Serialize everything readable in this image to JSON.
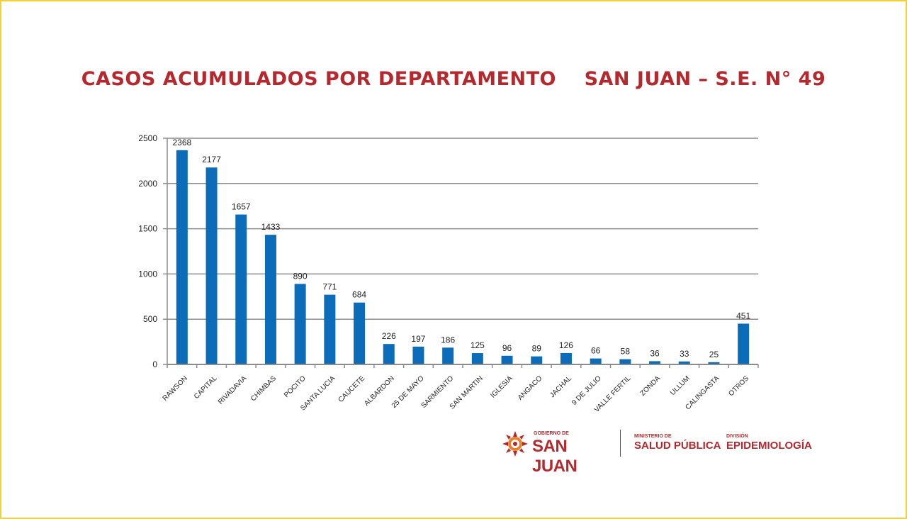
{
  "header": {
    "title": "CASOS ACUMULADOS POR DEPARTAMENTO    SAN JUAN – S.E. N° 49"
  },
  "chart_data": {
    "type": "bar",
    "title": "CASOS ACUMULADOS POR DEPARTAMENTO    SAN JUAN – S.E. N° 49",
    "xlabel": "",
    "ylabel": "",
    "ylim": [
      0,
      2500
    ],
    "yticks": [
      0,
      500,
      1000,
      1500,
      2000,
      2500
    ],
    "grid": true,
    "categories": [
      "RAWSON",
      "CAPITAL",
      "RIVADAVIA",
      "CHIMBAS",
      "POCITO",
      "SANTA LUCIA",
      "CAUCETE",
      "ALBARDON",
      "25 DE MAYO",
      "SARMIENTO",
      "SAN MARTIN",
      "IGLESIA",
      "ANGACO",
      "JACHAL",
      "9 DE JULIO",
      "VALLE FERTIL",
      "ZONDA",
      "ULLUM",
      "CALINGASTA",
      "OTROS"
    ],
    "values": [
      2368,
      2177,
      1657,
      1433,
      890,
      771,
      684,
      226,
      197,
      186,
      125,
      96,
      89,
      126,
      66,
      58,
      36,
      33,
      25,
      451
    ],
    "colors": {
      "bar": "#0b6dba",
      "grid": "#8c8c8c",
      "text": "#222222"
    }
  },
  "footer": {
    "gov_small": "GOBIERNO DE",
    "gov_big": "SAN JUAN",
    "ministry_small": "MINISTERIO DE",
    "ministry_big": "SALUD PÚBLICA",
    "division_small": "DIVISIÓN",
    "division_big": "EPIDEMIOLOGÍA"
  },
  "colors": {
    "brand_red": "#b5292e",
    "frame_yellow": "#f2d230"
  }
}
